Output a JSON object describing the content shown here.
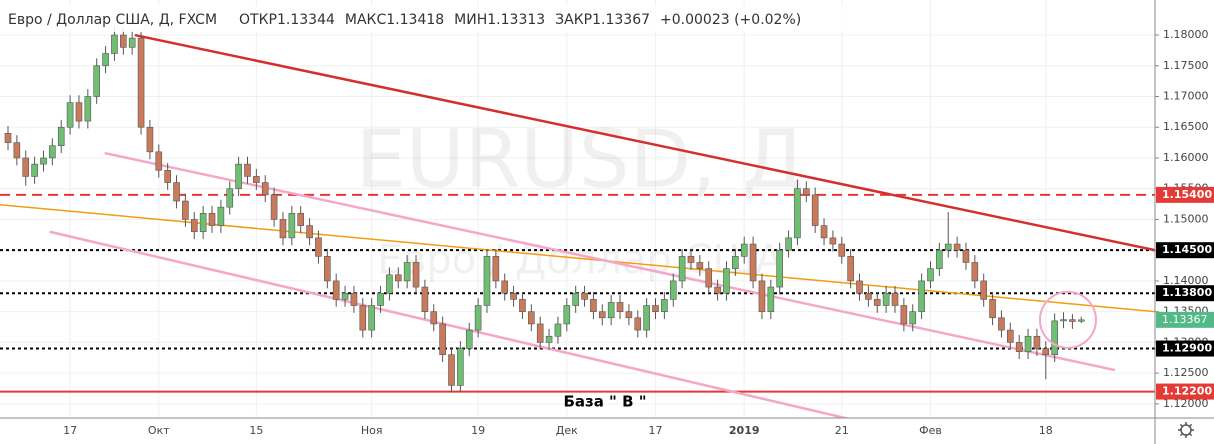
{
  "chart_data": {
    "type": "candlestick",
    "title": "Евро / Доллар США, Д, FXCM",
    "ohlc_labels": [
      "ОТКР",
      "МАКС",
      "МИН",
      "ЗАКР"
    ],
    "change": "+0.00023 (+0.02%)",
    "watermark": "EURUSD, Д",
    "watermark_subtitle": "Евро / Доллар США",
    "annotation": "База  \" В \"",
    "up_color": "#6fbf73",
    "down_color": "#c97a5b",
    "grid": true,
    "ylim": [
      1.1177,
      1.1857
    ],
    "yticks": [
      {
        "value": 1.12,
        "label": "1.12000"
      },
      {
        "value": 1.125,
        "label": "1.12500"
      },
      {
        "value": 1.13,
        "label": "1.13000"
      },
      {
        "value": 1.135,
        "label": "1.13500"
      },
      {
        "value": 1.14,
        "label": "1.14000"
      },
      {
        "value": 1.145,
        "label": "1.14500"
      },
      {
        "value": 1.15,
        "label": "1.15000"
      },
      {
        "value": 1.155,
        "label": "1.15500"
      },
      {
        "value": 1.16,
        "label": "1.16000"
      },
      {
        "value": 1.165,
        "label": "1.16500"
      },
      {
        "value": 1.17,
        "label": "1.17000"
      },
      {
        "value": 1.175,
        "label": "1.17500"
      },
      {
        "value": 1.18,
        "label": "1.18000"
      }
    ],
    "levels": [
      {
        "value": 1.154,
        "label": "1.15400",
        "color": "#e53935",
        "style": "dashed"
      },
      {
        "value": 1.145,
        "label": "1.14500",
        "color": "#000000",
        "style": "dotted"
      },
      {
        "value": 1.138,
        "label": "1.13800",
        "color": "#000000",
        "style": "dotted"
      },
      {
        "value": 1.129,
        "label": "1.12900",
        "color": "#000000",
        "style": "dotted"
      },
      {
        "value": 1.122,
        "label": "1.12200",
        "color": "#e53935",
        "style": "solid"
      }
    ],
    "last_price_color": "#53b987",
    "trendlines": [
      {
        "color": "#d32f2f",
        "width": 2.5,
        "x": [
          14.3,
          129.3
        ],
        "y": [
          1.18,
          1.145
        ]
      },
      {
        "color": "#f39c12",
        "width": 1.5,
        "x": [
          -0.9,
          129.3
        ],
        "y": [
          1.1524,
          1.135
        ]
      },
      {
        "color": "#f4a7c8",
        "width": 2.5,
        "x": [
          10.9,
          124.8
        ],
        "y": [
          1.1608,
          1.1255
        ]
      },
      {
        "color": "#f4a7c8",
        "width": 2.5,
        "x": [
          4.7,
          106.8
        ],
        "y": [
          1.148,
          1.1135
        ]
      }
    ],
    "categories": [
      null,
      null,
      null,
      null,
      null,
      null,
      null,
      "17",
      null,
      null,
      null,
      null,
      null,
      null,
      null,
      null,
      null,
      "Окт",
      null,
      null,
      null,
      null,
      null,
      null,
      null,
      null,
      null,
      null,
      "15",
      null,
      null,
      null,
      null,
      null,
      null,
      null,
      null,
      null,
      null,
      null,
      null,
      "Ноя",
      null,
      null,
      null,
      null,
      null,
      null,
      null,
      null,
      null,
      null,
      null,
      "19",
      null,
      null,
      null,
      null,
      null,
      null,
      null,
      null,
      null,
      "Дек",
      null,
      null,
      null,
      null,
      null,
      null,
      null,
      null,
      null,
      "17",
      null,
      null,
      null,
      null,
      null,
      null,
      null,
      null,
      null,
      "2019",
      null,
      null,
      null,
      null,
      null,
      null,
      null,
      null,
      null,
      null,
      "21",
      null,
      null,
      null,
      null,
      null,
      null,
      null,
      null,
      null,
      "Фев",
      null,
      null,
      null,
      null,
      null,
      null,
      null,
      null,
      null,
      null,
      null,
      null,
      "18",
      null,
      null,
      null,
      null
    ],
    "open": [
      1.164,
      1.1625,
      1.16,
      1.157,
      1.159,
      1.16,
      1.162,
      1.165,
      1.169,
      1.166,
      1.17,
      1.175,
      1.177,
      1.18,
      1.178,
      1.1795,
      1.165,
      1.161,
      1.158,
      1.156,
      1.153,
      1.15,
      1.148,
      1.151,
      1.149,
      1.152,
      1.155,
      1.159,
      1.157,
      1.156,
      1.154,
      1.15,
      1.147,
      1.151,
      1.149,
      1.147,
      1.144,
      1.14,
      1.137,
      1.138,
      1.136,
      1.132,
      1.136,
      1.138,
      1.141,
      1.14,
      1.143,
      1.139,
      1.135,
      1.133,
      1.128,
      1.123,
      1.129,
      1.132,
      1.136,
      1.144,
      1.14,
      1.138,
      1.137,
      1.135,
      1.133,
      1.13,
      1.131,
      1.133,
      1.136,
      1.138,
      1.137,
      1.135,
      1.134,
      1.1365,
      1.135,
      1.134,
      1.132,
      1.136,
      1.135,
      1.137,
      1.14,
      1.144,
      1.143,
      1.142,
      1.139,
      1.138,
      1.142,
      1.144,
      1.146,
      1.14,
      1.135,
      1.139,
      1.145,
      1.147,
      1.155,
      1.154,
      1.149,
      1.147,
      1.146,
      1.144,
      1.14,
      1.138,
      1.137,
      1.136,
      1.138,
      1.136,
      1.133,
      1.135,
      1.14,
      1.142,
      1.145,
      1.146,
      1.145,
      1.143,
      1.14,
      1.137,
      1.134,
      1.132,
      1.13,
      1.1285,
      1.131,
      1.129,
      1.128,
      1.1335,
      1.1337,
      1.13344
    ],
    "high": [
      1.1652,
      1.1637,
      1.1612,
      1.1602,
      1.1612,
      1.1632,
      1.1662,
      1.1702,
      1.1702,
      1.1712,
      1.1762,
      1.1782,
      1.1815,
      1.1812,
      1.1807,
      1.1807,
      1.1662,
      1.1622,
      1.1592,
      1.1572,
      1.1542,
      1.1512,
      1.1522,
      1.1522,
      1.1532,
      1.1562,
      1.1602,
      1.1602,
      1.1582,
      1.1572,
      1.1552,
      1.1512,
      1.1522,
      1.1522,
      1.1502,
      1.1482,
      1.1452,
      1.1412,
      1.1392,
      1.1392,
      1.1372,
      1.1372,
      1.1392,
      1.1422,
      1.1422,
      1.1442,
      1.1442,
      1.1402,
      1.1362,
      1.1342,
      1.1292,
      1.1302,
      1.1332,
      1.1372,
      1.1452,
      1.1452,
      1.1412,
      1.1392,
      1.1382,
      1.1362,
      1.1342,
      1.1322,
      1.1342,
      1.1372,
      1.1392,
      1.1392,
      1.1382,
      1.1362,
      1.1377,
      1.1377,
      1.1362,
      1.1352,
      1.1372,
      1.1372,
      1.1382,
      1.1412,
      1.1452,
      1.1452,
      1.1442,
      1.1432,
      1.1402,
      1.1432,
      1.1452,
      1.1472,
      1.1472,
      1.1412,
      1.1402,
      1.1462,
      1.1482,
      1.1565,
      1.1562,
      1.1552,
      1.1502,
      1.1482,
      1.1472,
      1.1452,
      1.1412,
      1.1392,
      1.1382,
      1.1392,
      1.1392,
      1.1372,
      1.1362,
      1.1412,
      1.1432,
      1.1462,
      1.1512,
      1.1472,
      1.1462,
      1.1442,
      1.1412,
      1.1382,
      1.1352,
      1.1332,
      1.1312,
      1.1322,
      1.1322,
      1.1302,
      1.1347,
      1.1349,
      1.1346,
      1.13418
    ],
    "low": [
      1.1613,
      1.1588,
      1.1555,
      1.1558,
      1.1578,
      1.1588,
      1.1608,
      1.1638,
      1.1648,
      1.1648,
      1.1688,
      1.1738,
      1.1758,
      1.1768,
      1.1768,
      1.1638,
      1.1598,
      1.1568,
      1.1548,
      1.1518,
      1.1488,
      1.1468,
      1.1468,
      1.1478,
      1.1478,
      1.1508,
      1.1538,
      1.1558,
      1.1548,
      1.1528,
      1.1488,
      1.1458,
      1.1458,
      1.1478,
      1.1458,
      1.1428,
      1.1388,
      1.1358,
      1.1358,
      1.1348,
      1.1308,
      1.1308,
      1.1348,
      1.1368,
      1.1388,
      1.1388,
      1.1378,
      1.1338,
      1.1318,
      1.1268,
      1.122,
      1.122,
      1.1278,
      1.1308,
      1.1348,
      1.1388,
      1.1368,
      1.1358,
      1.1338,
      1.1318,
      1.1288,
      1.1288,
      1.1298,
      1.1318,
      1.1348,
      1.1358,
      1.1338,
      1.1328,
      1.1328,
      1.1338,
      1.1328,
      1.1308,
      1.1308,
      1.1338,
      1.1338,
      1.1358,
      1.1388,
      1.1418,
      1.1408,
      1.1378,
      1.1368,
      1.1368,
      1.1408,
      1.1428,
      1.1388,
      1.1338,
      1.1338,
      1.1378,
      1.1438,
      1.1458,
      1.1528,
      1.1478,
      1.1458,
      1.1448,
      1.1428,
      1.1388,
      1.1368,
      1.1358,
      1.1348,
      1.1348,
      1.1348,
      1.1318,
      1.1318,
      1.1338,
      1.1388,
      1.1408,
      1.1438,
      1.1438,
      1.1418,
      1.1388,
      1.1358,
      1.1328,
      1.1308,
      1.1288,
      1.1273,
      1.1273,
      1.1278,
      1.124,
      1.1268,
      1.1323,
      1.1322,
      1.13313
    ],
    "close": [
      1.1625,
      1.16,
      1.157,
      1.159,
      1.16,
      1.162,
      1.165,
      1.169,
      1.166,
      1.17,
      1.175,
      1.177,
      1.18,
      1.178,
      1.1795,
      1.165,
      1.161,
      1.158,
      1.156,
      1.153,
      1.15,
      1.148,
      1.151,
      1.149,
      1.152,
      1.155,
      1.159,
      1.157,
      1.156,
      1.154,
      1.15,
      1.147,
      1.151,
      1.149,
      1.147,
      1.144,
      1.14,
      1.137,
      1.138,
      1.136,
      1.132,
      1.136,
      1.138,
      1.141,
      1.14,
      1.143,
      1.139,
      1.135,
      1.133,
      1.128,
      1.123,
      1.129,
      1.132,
      1.136,
      1.144,
      1.14,
      1.138,
      1.137,
      1.135,
      1.133,
      1.13,
      1.131,
      1.133,
      1.136,
      1.138,
      1.137,
      1.135,
      1.134,
      1.1365,
      1.135,
      1.134,
      1.132,
      1.136,
      1.135,
      1.137,
      1.14,
      1.144,
      1.143,
      1.142,
      1.139,
      1.138,
      1.142,
      1.144,
      1.146,
      1.14,
      1.135,
      1.139,
      1.145,
      1.147,
      1.155,
      1.154,
      1.149,
      1.147,
      1.146,
      1.144,
      1.14,
      1.138,
      1.137,
      1.136,
      1.138,
      1.136,
      1.133,
      1.135,
      1.14,
      1.142,
      1.145,
      1.146,
      1.145,
      1.143,
      1.14,
      1.137,
      1.134,
      1.132,
      1.13,
      1.1285,
      1.131,
      1.129,
      1.128,
      1.1335,
      1.1337,
      1.1334,
      1.13367
    ]
  }
}
